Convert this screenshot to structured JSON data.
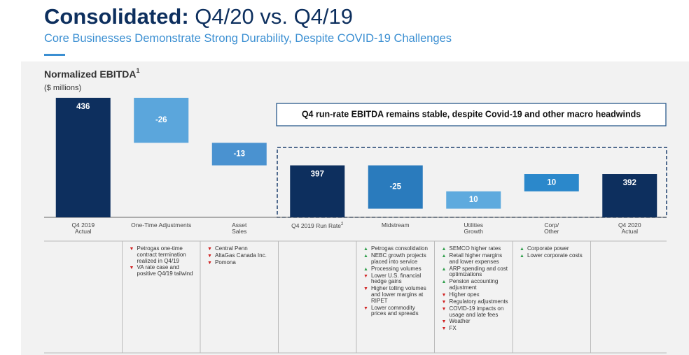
{
  "header": {
    "title_bold": "Consolidated:",
    "title": "Q4/20 vs. Q4/19",
    "subtitle": "Core Businesses Demonstrate Strong Durability, Despite COVID-19 Challenges"
  },
  "chart_data": {
    "type": "waterfall",
    "title": "Normalized EBITDA",
    "title_footnote": "1",
    "ylabel": "($ millions)",
    "categories": [
      "Q4 2019 Actual",
      "One-Time Adjustments",
      "Asset Sales",
      "Q4 2019 Run Rate",
      "Midstream",
      "Utilities Growth",
      "Corp/ Other",
      "Q4 2020 Actual"
    ],
    "category_footnotes": [
      null,
      null,
      null,
      "2",
      null,
      null,
      null,
      null
    ],
    "values": [
      436,
      -26,
      -13,
      397,
      -25,
      10,
      10,
      392
    ],
    "colors": [
      "#0d2f5e",
      "#5ba6dc",
      "#4a92d0",
      "#0d2f5e",
      "#2a7bbd",
      "#5eaade",
      "#2b88cb",
      "#0d2f5e"
    ],
    "ylim": [
      367,
      440
    ],
    "callout": "Q4 run-rate EBITDA remains stable, despite Covid-19 and other macro headwinds",
    "notes": [
      [],
      [
        {
          "dir": "down",
          "text": "Petrogas one-time contract termination realized in Q4/19"
        },
        {
          "dir": "down",
          "text": "VA rate case and positive Q4/19 tailwind"
        }
      ],
      [
        {
          "dir": "down",
          "text": "Central Penn"
        },
        {
          "dir": "down",
          "text": "AltaGas Canada Inc."
        },
        {
          "dir": "down",
          "text": "Pomona"
        }
      ],
      [],
      [
        {
          "dir": "up",
          "text": "Petrogas consolidation"
        },
        {
          "dir": "up",
          "text": "NEBC growth projects placed into service"
        },
        {
          "dir": "up",
          "text": "Processing volumes"
        },
        {
          "dir": "down",
          "text": "Lower U.S. financial hedge gains"
        },
        {
          "dir": "down",
          "text": "Higher tolling volumes and lower margins at RIPET"
        },
        {
          "dir": "down",
          "text": "Lower commodity prices and spreads"
        }
      ],
      [
        {
          "dir": "up",
          "text": "SEMCO higher rates"
        },
        {
          "dir": "up",
          "text": "Retail higher margins and lower expenses"
        },
        {
          "dir": "up",
          "text": "ARP spending and cost optimizations"
        },
        {
          "dir": "up",
          "text": "Pension accounting adjustment"
        },
        {
          "dir": "down",
          "text": "Higher opex"
        },
        {
          "dir": "down",
          "text": "Regulatory adjustments"
        },
        {
          "dir": "down",
          "text": "COVID-19 impacts on usage and late fees"
        },
        {
          "dir": "down",
          "text": "Weather"
        },
        {
          "dir": "down",
          "text": "FX"
        }
      ],
      [
        {
          "dir": "up",
          "text": "Corporate power"
        },
        {
          "dir": "up",
          "text": "Lower corporate costs"
        }
      ],
      []
    ]
  }
}
